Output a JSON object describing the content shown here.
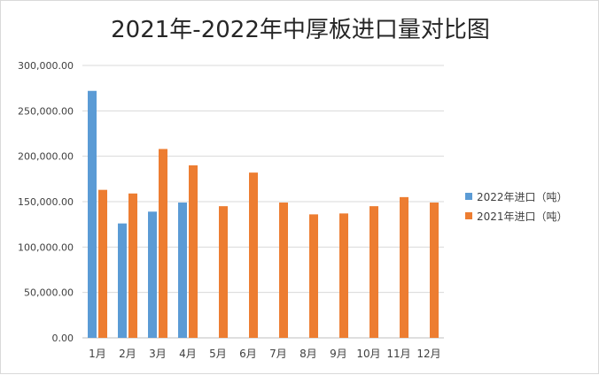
{
  "chart_data": {
    "type": "bar",
    "title": "2021年-2022年中厚板进口量对比图",
    "categories": [
      "1月",
      "2月",
      "3月",
      "4月",
      "5月",
      "6月",
      "7月",
      "8月",
      "9月",
      "10月",
      "11月",
      "12月"
    ],
    "series": [
      {
        "name": "2022年进口（吨）",
        "color": "#5b9bd5",
        "values": [
          272000,
          126000,
          139000,
          149000,
          null,
          null,
          null,
          null,
          null,
          null,
          null,
          null
        ]
      },
      {
        "name": "2021年进口（吨）",
        "color": "#ed7d31",
        "values": [
          163000,
          159000,
          208000,
          190000,
          145000,
          182000,
          149000,
          136000,
          137000,
          145000,
          155000,
          149000
        ]
      }
    ],
    "ylim": [
      0,
      300000
    ],
    "yticks": [
      0,
      50000,
      100000,
      150000,
      200000,
      250000,
      300000
    ],
    "ytick_labels": [
      "0.00",
      "50,000.00",
      "100,000.00",
      "150,000.00",
      "200,000.00",
      "250,000.00",
      "300,000.00"
    ],
    "grid": true,
    "legend_position": "right",
    "xlabel": "",
    "ylabel": ""
  }
}
